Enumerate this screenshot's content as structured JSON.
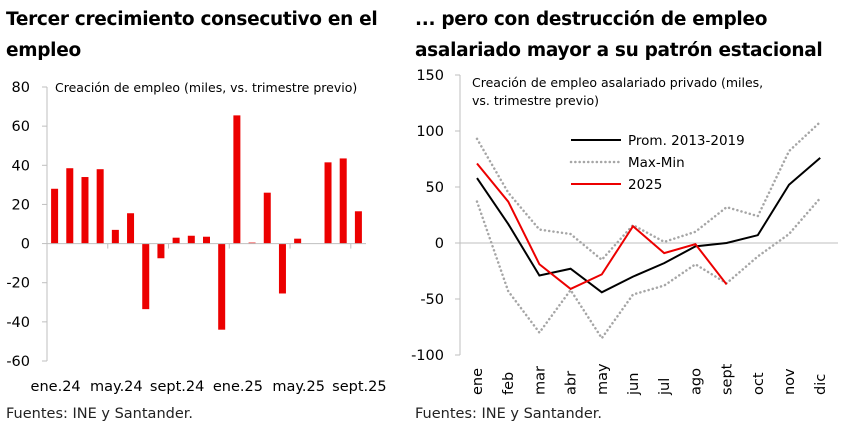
{
  "chart_data": [
    {
      "type": "bar",
      "title": "Tercer crecimiento consecutivo en el empleo",
      "annotation": "Creación de empleo (miles, vs. trimestre previo)",
      "xlabel": "",
      "ylabel": "",
      "ylim": [
        -60,
        80
      ],
      "yticks": [
        80,
        60,
        40,
        20,
        0,
        -20,
        -40,
        -60
      ],
      "xtick_labels": [
        "ene.24",
        "may.24",
        "sept.24",
        "ene.25",
        "may.25",
        "sept.25"
      ],
      "categories": [
        "ene.24",
        "feb.24",
        "mar.24",
        "abr.24",
        "may.24",
        "jun.24",
        "jul.24",
        "ago.24",
        "sept.24",
        "oct.24",
        "nov.24",
        "dic.24",
        "ene.25",
        "feb.25",
        "mar.25",
        "abr.25",
        "may.25",
        "jun.25",
        "jul.25",
        "ago.25",
        "sept.25"
      ],
      "values": [
        28,
        38.5,
        34,
        38,
        7,
        15.5,
        -33.5,
        -7.5,
        3,
        4,
        3.5,
        -44,
        65.5,
        0.5,
        26,
        -25.5,
        2.5,
        0,
        41.5,
        43.5,
        16.5
      ],
      "bar_color": "#ec0000",
      "grid": false,
      "source": "Fuentes: INE y Santander."
    },
    {
      "type": "line",
      "title": "... pero con destrucción de empleo asalariado mayor a su patrón estacional",
      "annotation_line1": "Creación de empleo asalariado privado (miles,",
      "annotation_line2": "vs. trimestre previo)",
      "xlabel": "",
      "ylabel": "",
      "ylim": [
        -100,
        150
      ],
      "yticks": [
        150,
        100,
        50,
        0,
        -50,
        -100
      ],
      "x": [
        "ene",
        "feb",
        "mar",
        "abr",
        "may",
        "jun",
        "jul",
        "ago",
        "sept",
        "oct",
        "nov",
        "dic"
      ],
      "series": [
        {
          "name": "Prom. 2013-2019",
          "color": "#000000",
          "style": "solid",
          "values": [
            58,
            17,
            -29,
            -23,
            -44,
            -30,
            -18,
            -3,
            0,
            7,
            52,
            76
          ]
        },
        {
          "name": "Max-Min",
          "color": "#a6a6a6",
          "style": "dotted",
          "role": "max",
          "values": [
            93,
            45,
            12,
            8,
            -15,
            16,
            1,
            10,
            32,
            24,
            82,
            108
          ]
        },
        {
          "name": "Max-Min",
          "color": "#a6a6a6",
          "style": "dotted",
          "role": "min",
          "values": [
            37,
            -43,
            -80,
            -42,
            -85,
            -46,
            -38,
            -19,
            -36,
            -12,
            8,
            40
          ],
          "show_in_legend": false
        },
        {
          "name": "2025",
          "color": "#ec0000",
          "style": "solid",
          "values": [
            71,
            37,
            -19,
            -41,
            -28,
            15,
            -9,
            -1,
            -37,
            null,
            null,
            null
          ]
        }
      ],
      "legend": [
        "Prom. 2013-2019",
        "Max-Min",
        "2025"
      ],
      "legend_position": "top-center",
      "grid": false,
      "source": "Fuentes: INE y Santander."
    }
  ]
}
